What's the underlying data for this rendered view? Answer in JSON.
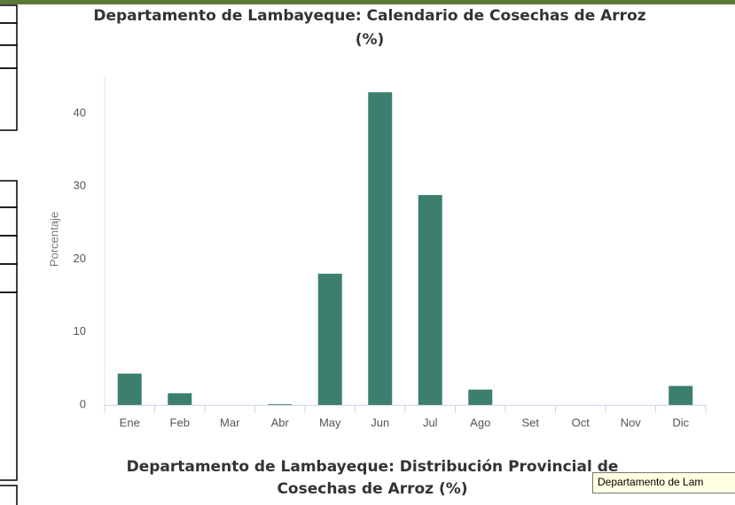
{
  "chart_data": {
    "type": "bar",
    "title": "Departamento de Lambayeque: Calendario de Cosechas de Arroz",
    "subtitle": "(%)",
    "y_axis_label": "Porcentaje",
    "categories": [
      "Ene",
      "Feb",
      "Mar",
      "Abr",
      "May",
      "Jun",
      "Jul",
      "Ago",
      "Set",
      "Oct",
      "Nov",
      "Dic"
    ],
    "values": [
      4.3,
      1.6,
      0,
      0.1,
      18.0,
      42.9,
      28.8,
      2.1,
      0,
      0,
      0,
      2.6
    ],
    "color": "#3d7f6f",
    "ylim": [
      0,
      45
    ],
    "yticks": [
      0,
      10,
      20,
      30,
      40
    ],
    "grid": false
  },
  "next_chart": {
    "title_line1": "Departamento de Lambayeque: Distribución Provincial de",
    "title_line2": "Cosechas de Arroz (%)"
  },
  "tooltip": "Departamento de Lam"
}
